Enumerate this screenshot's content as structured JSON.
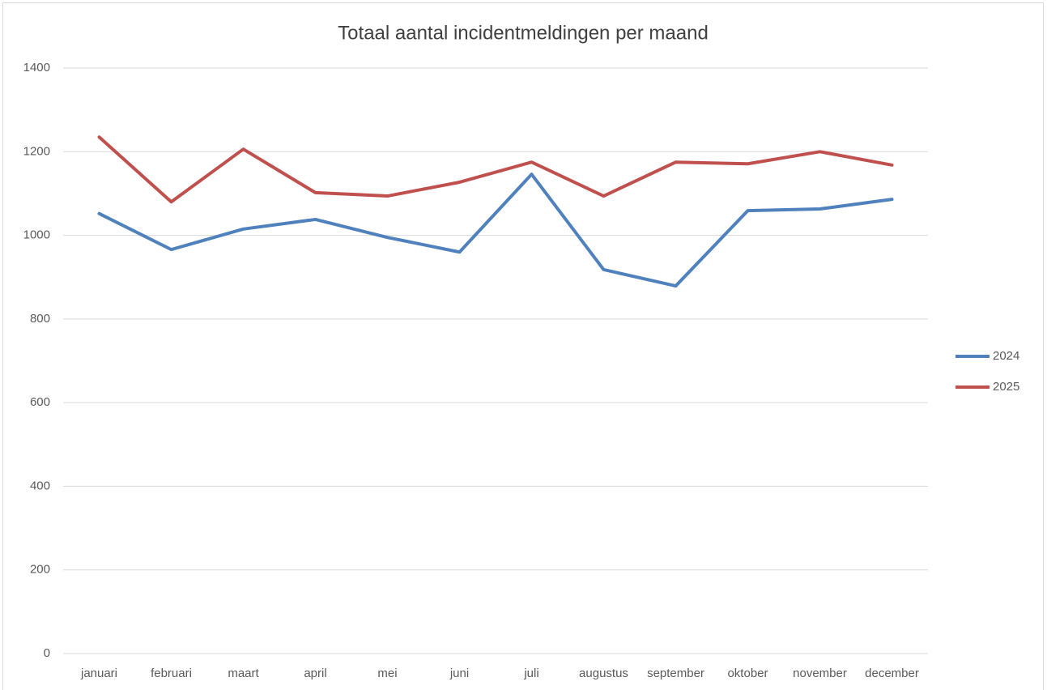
{
  "chart_data": {
    "type": "line",
    "title": "Totaal aantal incidentmeldingen per maand",
    "categories": [
      "januari",
      "februari",
      "maart",
      "april",
      "mei",
      "juni",
      "juli",
      "augustus",
      "september",
      "oktober",
      "november",
      "december"
    ],
    "series": [
      {
        "name": "2024",
        "color": "#4f81bd",
        "values": [
          1052,
          966,
          1015,
          1038,
          995,
          960,
          1146,
          918,
          879,
          1059,
          1063,
          1086
        ]
      },
      {
        "name": "2025",
        "color": "#c0504d",
        "values": [
          1235,
          1080,
          1206,
          1102,
          1094,
          1127,
          1175,
          1094,
          1175,
          1171,
          1200,
          1168
        ]
      }
    ],
    "ylim": [
      0,
      1400
    ],
    "yticks": [
      0,
      200,
      400,
      600,
      800,
      1000,
      1200,
      1400
    ],
    "grid": true,
    "legend": "right"
  }
}
